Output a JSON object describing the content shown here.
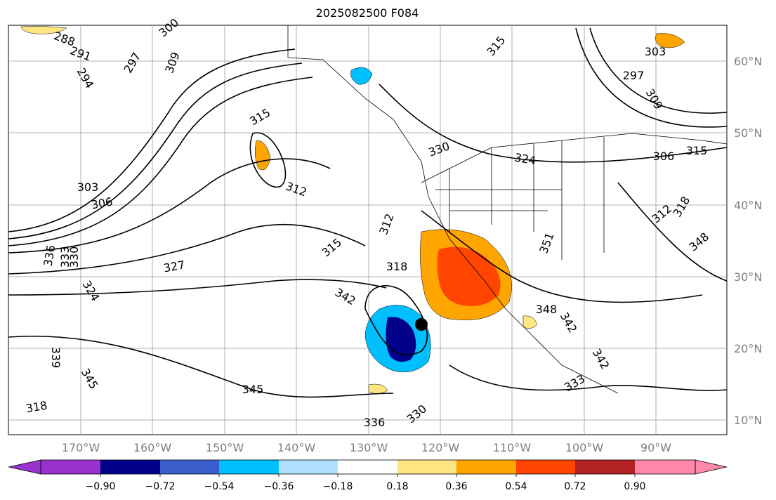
{
  "title": "2025082500 F084",
  "map": {
    "type": "contour-shaded-map",
    "lon_ticks": [
      "170°W",
      "160°W",
      "150°W",
      "140°W",
      "130°W",
      "120°W",
      "110°W",
      "100°W",
      "90°W"
    ],
    "lat_ticks": [
      "60°N",
      "50°N",
      "40°N",
      "30°N",
      "20°N",
      "10°N"
    ],
    "contour_labels": [
      "288",
      "291",
      "294",
      "297",
      "300",
      "309",
      "315",
      "312",
      "303",
      "306",
      "336",
      "333",
      "330",
      "327",
      "324",
      "339",
      "345",
      "318",
      "315",
      "312",
      "318",
      "342",
      "345",
      "336",
      "330",
      "330",
      "324",
      "315",
      "303",
      "297",
      "309",
      "306",
      "315",
      "312",
      "318",
      "348",
      "351",
      "348",
      "342",
      "342",
      "333"
    ],
    "marker": "storm-center-dot",
    "grid": true
  },
  "colorbar": {
    "tick_labels": [
      "−0.90",
      "−0.72",
      "−0.54",
      "−0.36",
      "−0.18",
      "0.18",
      "0.36",
      "0.54",
      "0.72",
      "0.90"
    ],
    "colors": [
      "#9932cc",
      "#00008b",
      "#3a5fcd",
      "#00bfff",
      "#b0e2ff",
      "#ffffff",
      "#ffe680",
      "#ffa500",
      "#ff4500",
      "#b22222",
      "#ff88aa"
    ]
  }
}
